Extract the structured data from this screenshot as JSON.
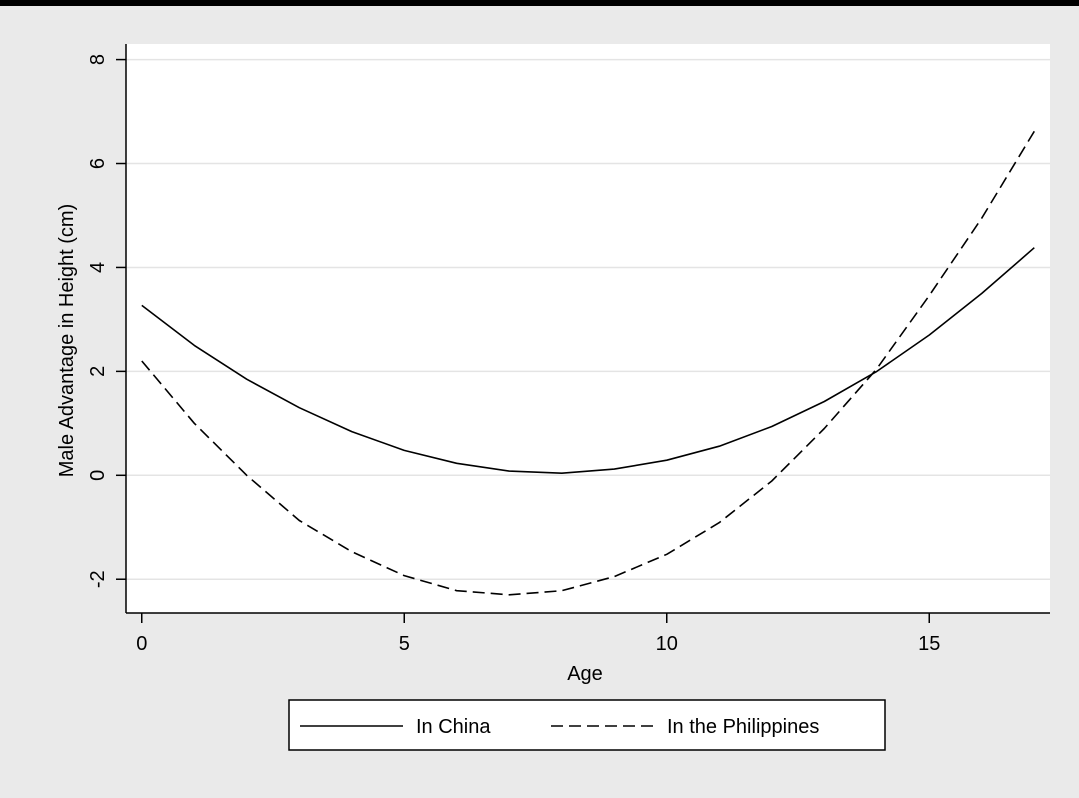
{
  "colors": {
    "outer_background": "#eaeaea",
    "plot_background": "#ffffff",
    "gridline": "#e4e4e4",
    "line": "#000000"
  },
  "chart_data": {
    "type": "line",
    "xlabel": "Age",
    "ylabel": "Male Advantage in Height (cm)",
    "xlim": [
      -0.3,
      17.3
    ],
    "ylim": [
      -2.65,
      8.3
    ],
    "x_ticks": [
      0,
      5,
      10,
      15
    ],
    "x_tick_labels": [
      "0",
      "5",
      "10",
      "15"
    ],
    "y_ticks": [
      -2,
      0,
      2,
      4,
      6,
      8
    ],
    "y_tick_labels": [
      "-2",
      "0",
      "2",
      "4",
      "6",
      "8"
    ],
    "grid": "horizontal",
    "legend_position": "bottom",
    "x": [
      0,
      1,
      2,
      3,
      4,
      5,
      6,
      7,
      8,
      9,
      10,
      11,
      12,
      13,
      14,
      15,
      16,
      17
    ],
    "series": [
      {
        "name": "In China",
        "style": "solid",
        "values": [
          3.27,
          2.5,
          1.85,
          1.3,
          0.84,
          0.48,
          0.23,
          0.08,
          0.04,
          0.12,
          0.29,
          0.56,
          0.94,
          1.42,
          2.0,
          2.7,
          3.5,
          4.38
        ]
      },
      {
        "name": "In the Philippines",
        "style": "dashed",
        "values": [
          2.2,
          1.0,
          0.0,
          -0.87,
          -1.47,
          -1.93,
          -2.22,
          -2.3,
          -2.22,
          -1.95,
          -1.52,
          -0.91,
          -0.11,
          0.9,
          2.05,
          3.46,
          4.95,
          6.62
        ]
      }
    ]
  }
}
